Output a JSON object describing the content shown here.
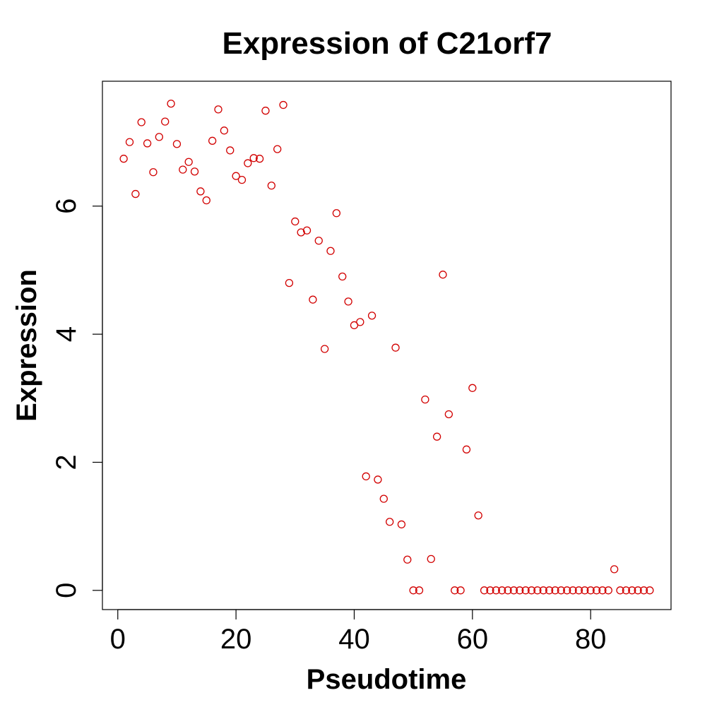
{
  "chart_data": {
    "type": "scatter",
    "title": "Expression of C21orf7",
    "xlabel": "Pseudotime",
    "ylabel": "Expression",
    "xlim": [
      -2.6,
      93.6
    ],
    "ylim": [
      -0.3,
      7.95
    ],
    "xticks": [
      0,
      20,
      40,
      60,
      80
    ],
    "yticks": [
      0,
      2,
      4,
      6
    ],
    "point_color": "#d20000",
    "marker": "open-circle",
    "series": [
      {
        "x": [
          1,
          2,
          3,
          4,
          5,
          6,
          7,
          8,
          9,
          10,
          11,
          12,
          13,
          14,
          15,
          16,
          17,
          18,
          19,
          20,
          21,
          22,
          23,
          24,
          25,
          26,
          27,
          28,
          29,
          30,
          31,
          32,
          33,
          34,
          35,
          36,
          37,
          38,
          39,
          40,
          41,
          42,
          43,
          44,
          45,
          46,
          47,
          48,
          49,
          50,
          51,
          52,
          53,
          54,
          55,
          56,
          57,
          58,
          59,
          60,
          61,
          62,
          63,
          64,
          65,
          66,
          67,
          68,
          69,
          70,
          71,
          72,
          73,
          74,
          75,
          76,
          77,
          78,
          79,
          80,
          81,
          82,
          83,
          84,
          85,
          86,
          87,
          88,
          89,
          90
        ],
        "y": [
          6.74,
          7.0,
          6.19,
          7.31,
          6.98,
          6.53,
          7.08,
          7.32,
          7.6,
          6.97,
          6.57,
          6.69,
          6.54,
          6.23,
          6.09,
          7.02,
          7.51,
          7.18,
          6.87,
          6.47,
          6.41,
          6.67,
          6.75,
          6.74,
          7.49,
          6.32,
          6.89,
          7.58,
          4.8,
          5.76,
          5.59,
          5.62,
          4.54,
          5.46,
          3.77,
          5.3,
          5.89,
          4.9,
          4.51,
          4.14,
          4.19,
          1.78,
          4.29,
          1.73,
          1.43,
          1.07,
          3.79,
          1.03,
          0.48,
          0.0,
          0.0,
          2.98,
          0.49,
          2.4,
          4.93,
          2.75,
          0.0,
          0.0,
          2.2,
          3.16,
          1.17,
          0.0,
          0.0,
          0.0,
          0.0,
          0.0,
          0.0,
          0.0,
          0.0,
          0.0,
          0.0,
          0.0,
          0.0,
          0.0,
          0.0,
          0.0,
          0.0,
          0.0,
          0.0,
          0.0,
          0.0,
          0.0,
          0.0,
          0.33,
          0.0,
          0.0,
          0.0,
          0.0,
          0.0,
          0.0
        ]
      }
    ]
  }
}
